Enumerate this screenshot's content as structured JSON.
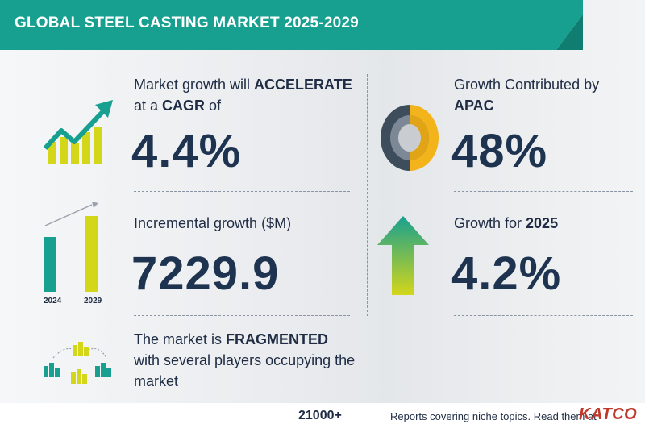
{
  "header": {
    "title": "GLOBAL STEEL CASTING MARKET 2025-2029"
  },
  "cagr": {
    "line1_pre": "Market growth will ",
    "line1_bold": "ACCELERATE",
    "line2_pre": "at a ",
    "line2_bold": "CAGR",
    "line2_post": " of",
    "value": "4.4%"
  },
  "incremental": {
    "label": "Incremental growth ($M)",
    "value": "7229.9",
    "year_start": "2024",
    "year_end": "2029"
  },
  "fragmented": {
    "line1_pre": "The market is ",
    "line1_bold": "FRAGMENTED",
    "line2": "with several players occupying the",
    "line3": "market"
  },
  "region": {
    "line1": "Growth Contributed by",
    "line2_bold": "APAC",
    "value": "48%",
    "share": 0.48
  },
  "growth_2025": {
    "label_pre": "Growth for ",
    "label_bold": "2025",
    "value": "4.2%"
  },
  "footer": {
    "count": "21000+",
    "text": "Reports covering niche topics. Read them at",
    "logo": "KATCO"
  },
  "colors": {
    "teal": "#17a090",
    "yellow": "#d4d61a",
    "navy": "#1e3350",
    "dark_slate": "#3d4d5c",
    "gold": "#f2b31b"
  }
}
